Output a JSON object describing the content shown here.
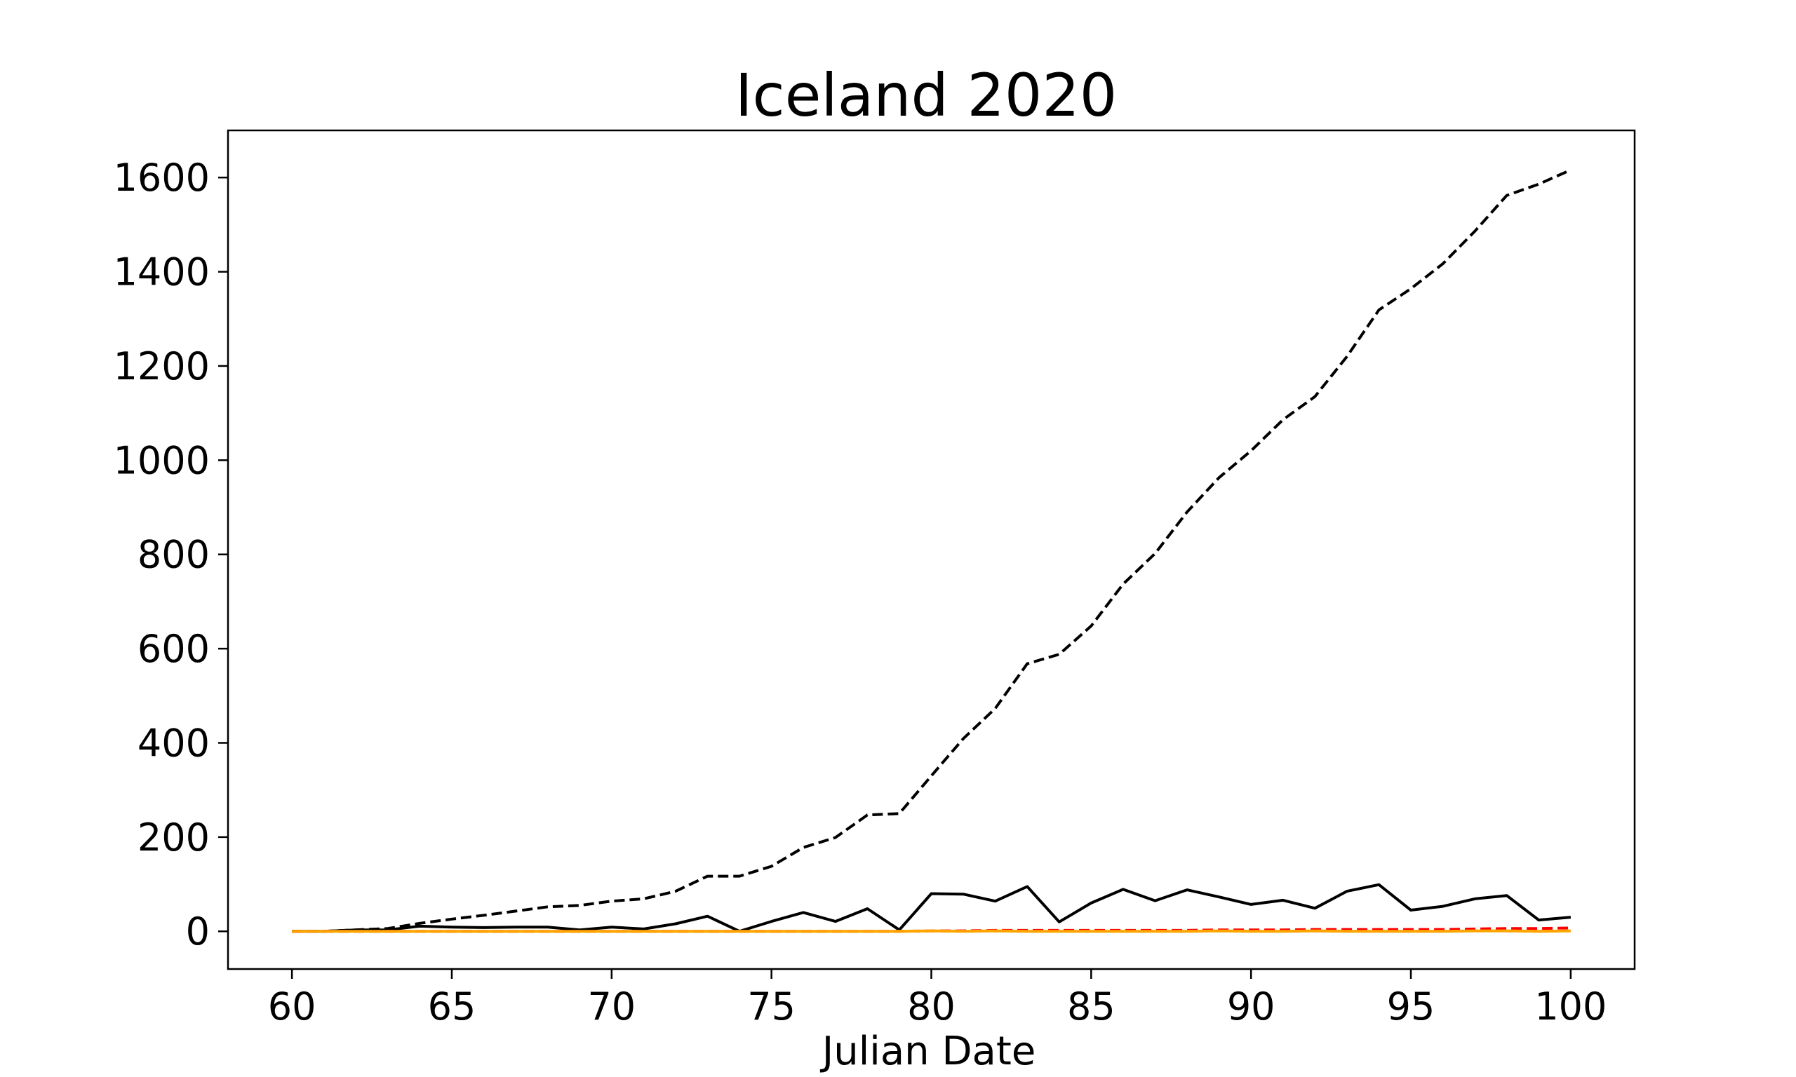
{
  "chart_data": {
    "type": "line",
    "title": "Iceland 2020",
    "xlabel": "Julian Date",
    "ylabel": "",
    "xlim": [
      58,
      102
    ],
    "ylim": [
      -80,
      1700
    ],
    "xticks": [
      60,
      65,
      70,
      75,
      80,
      85,
      90,
      95,
      100
    ],
    "yticks": [
      0,
      200,
      400,
      600,
      800,
      1000,
      1200,
      1400,
      1600
    ],
    "grid": false,
    "x": [
      60,
      61,
      62,
      63,
      64,
      65,
      66,
      67,
      68,
      69,
      70,
      71,
      72,
      73,
      74,
      75,
      76,
      77,
      78,
      79,
      80,
      81,
      82,
      83,
      84,
      85,
      86,
      87,
      88,
      89,
      90,
      91,
      92,
      93,
      94,
      95,
      96,
      97,
      98,
      99,
      100
    ],
    "series": [
      {
        "color": "#000000",
        "style": "dashed",
        "values": [
          0,
          0,
          3,
          6,
          17,
          26,
          34,
          43,
          52,
          55,
          64,
          69,
          85,
          117,
          117,
          138,
          178,
          199,
          247,
          250,
          330,
          409,
          473,
          568,
          588,
          648,
          737,
          802,
          890,
          963,
          1020,
          1086,
          1135,
          1220,
          1319,
          1364,
          1417,
          1486,
          1562,
          1586,
          1616
        ]
      },
      {
        "color": "#000000",
        "style": "solid",
        "values": [
          0,
          0,
          3,
          3,
          11,
          9,
          8,
          9,
          9,
          3,
          9,
          5,
          16,
          32,
          0,
          21,
          40,
          21,
          48,
          3,
          80,
          79,
          64,
          95,
          20,
          60,
          89,
          65,
          88,
          73,
          57,
          66,
          49,
          85,
          99,
          45,
          53,
          69,
          76,
          24,
          30
        ]
      },
      {
        "color": "#ff0000",
        "style": "dashed",
        "values": [
          0,
          0,
          0,
          0,
          0,
          0,
          0,
          0,
          0,
          0,
          0,
          0,
          0,
          0,
          0,
          0,
          0,
          0,
          0,
          0,
          1,
          1,
          2,
          2,
          2,
          2,
          2,
          2,
          2,
          3,
          3,
          3,
          4,
          4,
          4,
          4,
          4,
          5,
          6,
          6,
          7
        ]
      },
      {
        "color": "#ffa500",
        "style": "solid",
        "values": [
          0,
          0,
          0,
          0,
          0,
          0,
          0,
          0,
          0,
          0,
          0,
          0,
          0,
          0,
          0,
          0,
          0,
          0,
          0,
          0,
          1,
          0,
          1,
          0,
          0,
          0,
          0,
          0,
          0,
          1,
          0,
          0,
          1,
          0,
          0,
          0,
          0,
          1,
          1,
          0,
          1
        ]
      }
    ]
  }
}
